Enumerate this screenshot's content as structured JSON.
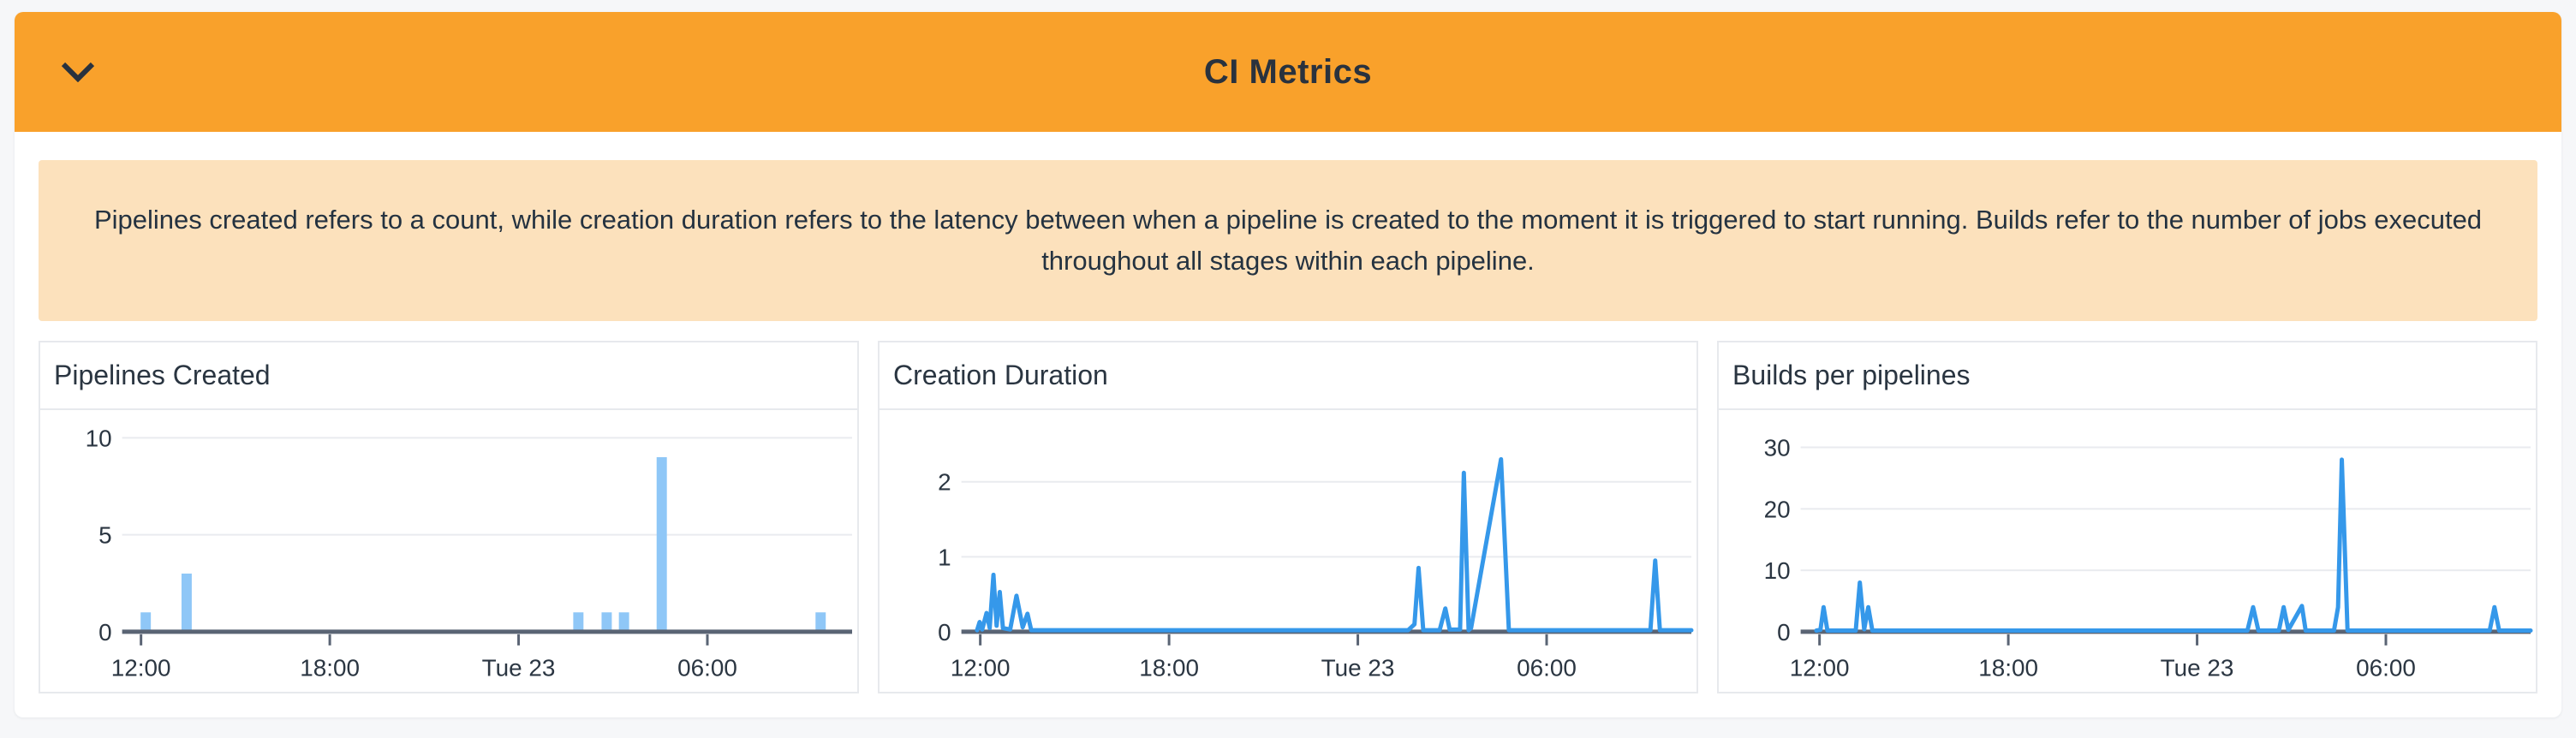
{
  "header": {
    "title": "CI Metrics",
    "collapse_icon": "chevron-down-icon"
  },
  "notice": {
    "text": "Pipelines created refers to a count, while creation duration refers to the latency between when a pipeline is created to the moment it is triggered to start running. Builds refer to the number of jobs executed throughout all stages within each pipeline."
  },
  "colors": {
    "page_bg": "#F6F7F9",
    "header_bg": "#F9A12B",
    "header_text": "#29323E",
    "notice_bg": "#FCE1BC",
    "notice_text": "#243240",
    "panel_border": "#E7E9ED",
    "panel_title_text": "#2A3541",
    "axis": "#5A6474",
    "gridline": "#E9EBEF",
    "tick_label": "#2B3642",
    "bar_fill": "#8FC7F7",
    "line_stroke": "#3598EA"
  },
  "chart_data": [
    {
      "type": "bar",
      "title": "Pipelines Created",
      "x_axis": {
        "domain": [
          11.4,
          34.6
        ],
        "ticks": [
          {
            "value": 12,
            "label": "12:00"
          },
          {
            "value": 18,
            "label": "18:00"
          },
          {
            "value": 24,
            "label": "Tue 23"
          },
          {
            "value": 30,
            "label": "06:00"
          }
        ]
      },
      "yticks": [
        0,
        5,
        10
      ],
      "ylim": [
        0,
        10.9
      ],
      "grid": true,
      "legend": "none",
      "bars": [
        [
          12.15,
          1
        ],
        [
          13.45,
          3
        ],
        [
          25.9,
          1
        ],
        [
          26.8,
          1
        ],
        [
          27.35,
          1
        ],
        [
          28.55,
          9
        ],
        [
          33.6,
          1
        ]
      ]
    },
    {
      "type": "line",
      "title": "Creation Duration",
      "x_axis": {
        "domain": [
          11.4,
          34.6
        ],
        "ticks": [
          {
            "value": 12,
            "label": "12:00"
          },
          {
            "value": 18,
            "label": "18:00"
          },
          {
            "value": 24,
            "label": "Tue 23"
          },
          {
            "value": 30,
            "label": "06:00"
          }
        ]
      },
      "yticks": [
        0,
        1,
        2
      ],
      "ylim": [
        0,
        2.82
      ],
      "grid": true,
      "legend": "none",
      "series": [
        {
          "name": "creation duration",
          "points": [
            [
              11.9,
              0.02
            ],
            [
              11.98,
              0.13
            ],
            [
              12.06,
              0.03
            ],
            [
              12.2,
              0.25
            ],
            [
              12.3,
              0.05
            ],
            [
              12.42,
              0.76
            ],
            [
              12.52,
              0.08
            ],
            [
              12.62,
              0.53
            ],
            [
              12.72,
              0.05
            ],
            [
              12.95,
              0.03
            ],
            [
              13.15,
              0.48
            ],
            [
              13.35,
              0.06
            ],
            [
              13.5,
              0.24
            ],
            [
              13.62,
              0.02
            ],
            [
              25.6,
              0.02
            ],
            [
              25.8,
              0.1
            ],
            [
              25.93,
              0.85
            ],
            [
              26.08,
              0.02
            ],
            [
              26.6,
              0.02
            ],
            [
              26.78,
              0.31
            ],
            [
              26.92,
              0.03
            ],
            [
              27.25,
              0.03
            ],
            [
              27.37,
              2.12
            ],
            [
              27.52,
              0.02
            ],
            [
              27.6,
              0.05
            ],
            [
              28.55,
              2.3
            ],
            [
              28.8,
              0.02
            ],
            [
              33.3,
              0.02
            ],
            [
              33.45,
              0.95
            ],
            [
              33.6,
              0.02
            ],
            [
              34.6,
              0.02
            ]
          ]
        }
      ]
    },
    {
      "type": "line",
      "title": "Builds per pipelines",
      "x_axis": {
        "domain": [
          11.4,
          34.6
        ],
        "ticks": [
          {
            "value": 12,
            "label": "12:00"
          },
          {
            "value": 18,
            "label": "18:00"
          },
          {
            "value": 24,
            "label": "Tue 23"
          },
          {
            "value": 30,
            "label": "06:00"
          }
        ]
      },
      "yticks": [
        0,
        10,
        20,
        30
      ],
      "ylim": [
        0,
        34.4
      ],
      "grid": true,
      "legend": "none",
      "series": [
        {
          "name": "builds per pipelines",
          "points": [
            [
              11.9,
              0.2
            ],
            [
              12.03,
              0.3
            ],
            [
              12.13,
              4
            ],
            [
              12.25,
              0.2
            ],
            [
              13.15,
              0.2
            ],
            [
              13.28,
              8
            ],
            [
              13.42,
              0.4
            ],
            [
              13.55,
              4
            ],
            [
              13.68,
              0.2
            ],
            [
              25.6,
              0.2
            ],
            [
              25.78,
              4
            ],
            [
              25.95,
              0.2
            ],
            [
              26.6,
              0.2
            ],
            [
              26.75,
              4
            ],
            [
              26.9,
              0.3
            ],
            [
              27.33,
              4.2
            ],
            [
              27.45,
              0.2
            ],
            [
              28.35,
              0.2
            ],
            [
              28.48,
              4
            ],
            [
              28.6,
              28
            ],
            [
              28.78,
              0.2
            ],
            [
              33.3,
              0.2
            ],
            [
              33.45,
              4
            ],
            [
              33.6,
              0.2
            ],
            [
              34.6,
              0.2
            ]
          ]
        }
      ]
    }
  ]
}
